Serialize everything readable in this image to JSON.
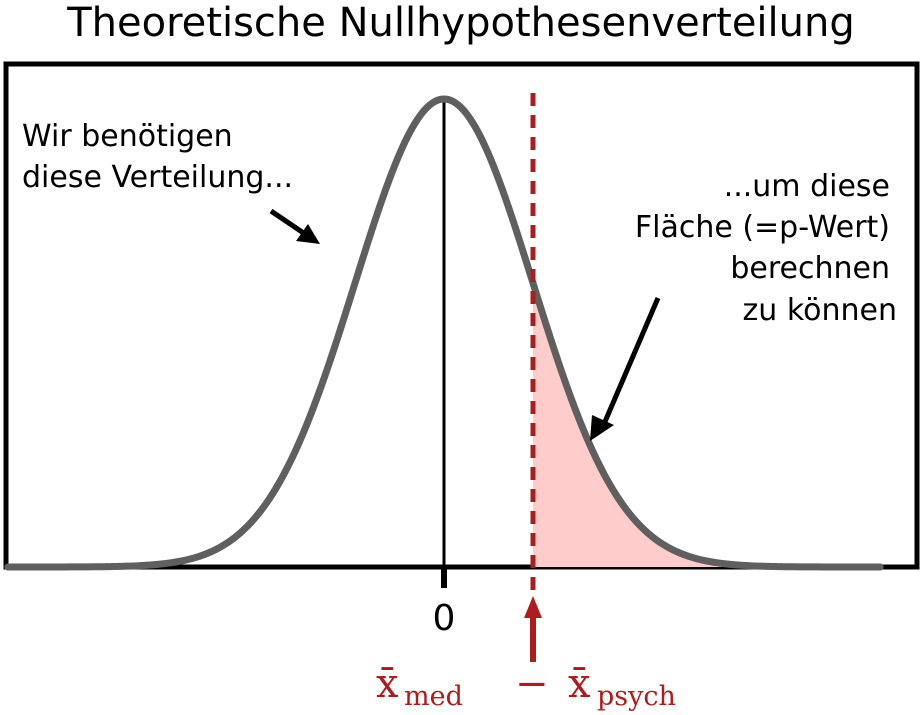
{
  "title": "Theoretische Nullhypothesenverteilung",
  "annotations": {
    "left_line1": "Wir benötigen",
    "left_line2": "diese Verteilung...",
    "right_line1": "...um diese",
    "right_line2": "Fläche (=p-Wert)",
    "right_line3": "berechnen",
    "right_line4": "zu  können"
  },
  "axis": {
    "tick_label": "0"
  },
  "statistic": {
    "bar": "x̄",
    "sub1": "med",
    "minus": "−",
    "sub2": "psych"
  },
  "chart_data": {
    "type": "area",
    "distribution": "normal",
    "mean": 0,
    "sd": 1,
    "xlim": [
      -4.9,
      4.9
    ],
    "observed_value": 1,
    "shaded_region": "right tail",
    "grid": false
  },
  "colors": {
    "curve": "#5f5f5f",
    "shade": "#ffcccc",
    "marker": "#b01c1c",
    "frame": "#000000"
  }
}
